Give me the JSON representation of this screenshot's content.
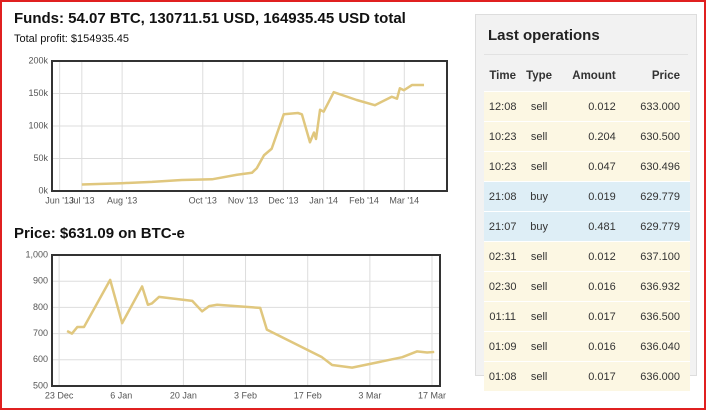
{
  "chart_data": [
    {
      "type": "line",
      "title": "Funds: 54.07 BTC, 130711.51 USD, 164935.45 USD total",
      "subtitle": "Total profit: $154935.45",
      "x": [
        1,
        1.99,
        2.74,
        3.48,
        4.23,
        4.85,
        5.22,
        5.34,
        5.52,
        5.71,
        6.01,
        6.36,
        6.46,
        6.66,
        6.76,
        6.81,
        6.91,
        7.0,
        7.25,
        7.82,
        8.27,
        8.69,
        8.82,
        8.89,
        8.99,
        9.19,
        9.49
      ],
      "values": [
        10000,
        12000,
        14000,
        17000,
        18000,
        25000,
        28000,
        35000,
        55000,
        65000,
        118000,
        120000,
        118000,
        75000,
        90000,
        80000,
        125000,
        122000,
        152000,
        140000,
        132000,
        145000,
        142000,
        158000,
        155000,
        163000,
        163000
      ],
      "color": "#e0c77e",
      "xlim": [
        0.26,
        10.06
      ],
      "ylim": [
        0,
        200000
      ],
      "xticks": [
        {
          "value": 0.45,
          "label": "Jun '13"
        },
        {
          "value": 1,
          "label": "Jul '13"
        },
        {
          "value": 2,
          "label": "Aug '13"
        },
        {
          "value": 4,
          "label": "Oct '13"
        },
        {
          "value": 5,
          "label": "Nov '13"
        },
        {
          "value": 6,
          "label": "Dec '13"
        },
        {
          "value": 7,
          "label": "Jan '14"
        },
        {
          "value": 8,
          "label": "Feb '14"
        },
        {
          "value": 9,
          "label": "Mar '14"
        }
      ],
      "yticks": [
        {
          "value": 0,
          "label": "0k"
        },
        {
          "value": 50000,
          "label": "50k"
        },
        {
          "value": 100000,
          "label": "100k"
        },
        {
          "value": 150000,
          "label": "150k"
        },
        {
          "value": 200000,
          "label": "200k"
        }
      ],
      "grid": true
    },
    {
      "type": "line",
      "title": "Price: $631.09 on BTC-e",
      "x": [
        1.8,
        2.9,
        4.1,
        5.6,
        11.5,
        14.2,
        18.7,
        20.0,
        20.9,
        22.5,
        30.0,
        32.2,
        33.8,
        35.6,
        45.3,
        46.8,
        59.2,
        61.5,
        66.0,
        77.3,
        80.6,
        82.9,
        84.5
      ],
      "values": [
        710,
        700,
        725,
        725,
        905,
        740,
        880,
        810,
        815,
        840,
        825,
        785,
        805,
        810,
        798,
        715,
        610,
        580,
        570,
        610,
        632,
        628,
        630
      ],
      "color": "#e0c77e",
      "xlim": [
        -1.6,
        85.8
      ],
      "ylim": [
        500,
        1000
      ],
      "xticks": [
        {
          "value": 0,
          "label": "23 Dec"
        },
        {
          "value": 14,
          "label": "6 Jan"
        },
        {
          "value": 28,
          "label": "20 Jan"
        },
        {
          "value": 42,
          "label": "3 Feb"
        },
        {
          "value": 56,
          "label": "17 Feb"
        },
        {
          "value": 70,
          "label": "3 Mar"
        },
        {
          "value": 84,
          "label": "17 Mar"
        }
      ],
      "yticks": [
        500,
        600,
        700,
        800,
        900,
        {
          "value": 1000,
          "label": "1,000"
        }
      ],
      "grid": true
    }
  ],
  "table": {
    "title": "Last operations",
    "columns": [
      "Time",
      "Type",
      "Amount",
      "Price"
    ],
    "rows": [
      [
        "12:08",
        "sell",
        "0.012",
        "633.000"
      ],
      [
        "10:23",
        "sell",
        "0.204",
        "630.500"
      ],
      [
        "10:23",
        "sell",
        "0.047",
        "630.496"
      ],
      [
        "21:08",
        "buy",
        "0.019",
        "629.779"
      ],
      [
        "21:07",
        "buy",
        "0.481",
        "629.779"
      ],
      [
        "02:31",
        "sell",
        "0.012",
        "637.100"
      ],
      [
        "02:30",
        "sell",
        "0.016",
        "636.932"
      ],
      [
        "01:11",
        "sell",
        "0.017",
        "636.500"
      ],
      [
        "01:09",
        "sell",
        "0.016",
        "636.040"
      ],
      [
        "01:08",
        "sell",
        "0.017",
        "636.000"
      ]
    ]
  }
}
